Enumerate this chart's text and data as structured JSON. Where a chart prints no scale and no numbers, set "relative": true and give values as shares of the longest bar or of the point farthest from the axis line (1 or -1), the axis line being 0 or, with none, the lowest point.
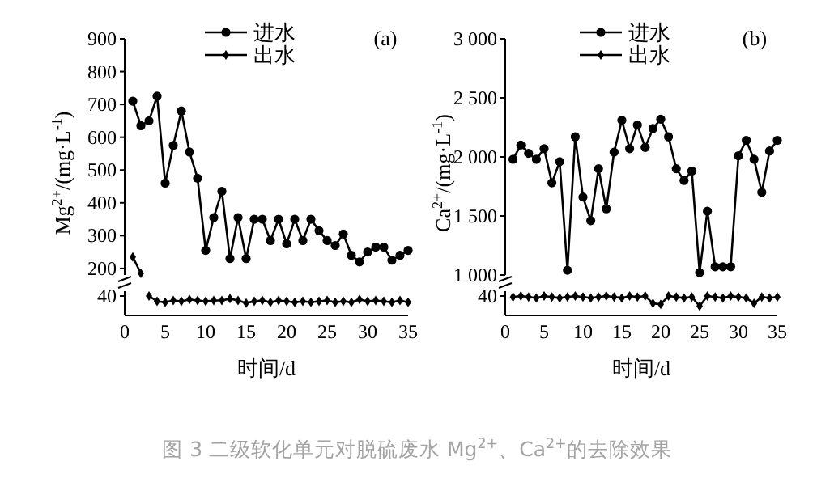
{
  "chart_data": [
    {
      "type": "line",
      "ylabel": "Mg$^{2+}$/(mg·L$^{-1}$)",
      "xlim": [
        0,
        35
      ],
      "ylim": [
        180,
        900
      ],
      "yticks": [
        200,
        300,
        400,
        500,
        600,
        700,
        800,
        900
      ],
      "tick_labels": "y",
      "legend": "top",
      "annotations": [
        "(a)",
        "图 3 二级软化单元对脱硫废水 Mg$^{2+}$、Ca$^{2+}$的去除效果"
      ],
      "series": [
        {
          "name": "进水",
          "color": "#000000",
          "marker": "circle",
          "x": [
            1,
            2,
            3,
            4,
            5,
            6,
            7,
            8,
            9,
            10,
            11,
            12,
            13,
            14,
            15,
            16,
            17,
            18,
            19,
            20,
            21,
            22,
            23,
            24,
            25,
            26,
            27,
            28,
            29,
            30,
            31,
            32,
            33,
            34,
            35
          ],
          "values": [
            710,
            635,
            650,
            725,
            460,
            575,
            680,
            555,
            475,
            255,
            355,
            435,
            230,
            355,
            230,
            350,
            350,
            285,
            350,
            275,
            350,
            285,
            350,
            315,
            285,
            270,
            305,
            240,
            220,
            250,
            265,
            265,
            225,
            240,
            255
          ]
        },
        {
          "name": "出水",
          "color": "#000000",
          "marker": "diamond",
          "x": [
            1,
            2
          ],
          "values": [
            235,
            185
          ]
        }
      ]
    },
    {
      "type": "line",
      "relative": true,
      "xlabel": "时间/d",
      "xlim": [
        0,
        35
      ],
      "xticks": [
        0,
        5,
        10,
        15,
        20,
        25,
        30,
        35
      ],
      "annotations": [
        "40"
      ],
      "series": [
        {
          "color": "#000000",
          "marker": "diamond",
          "x": [
            3,
            4,
            5,
            6,
            7,
            8,
            9,
            10,
            11,
            12,
            13,
            14,
            15,
            16,
            17,
            18,
            19,
            20,
            21,
            22,
            23,
            24,
            25,
            26,
            27,
            28,
            29,
            30,
            31,
            32,
            33,
            34,
            35
          ],
          "values": [
            1,
            0.73,
            0.68,
            0.77,
            0.73,
            0.82,
            0.77,
            0.73,
            0.77,
            0.77,
            0.86,
            0.77,
            0.64,
            0.73,
            0.77,
            0.68,
            0.77,
            0.73,
            0.68,
            0.73,
            0.68,
            0.73,
            0.77,
            0.68,
            0.73,
            0.68,
            0.82,
            0.73,
            0.77,
            0.73,
            0.68,
            0.77,
            0.68
          ]
        }
      ]
    },
    {
      "type": "line",
      "ylabel": "Ca$^{2+}$/(mg·L$^{-1}$)",
      "xlim": [
        0,
        35
      ],
      "ylim": [
        1000,
        3000
      ],
      "yticks": [
        {
          "value": 1000,
          "label": "1 000"
        },
        {
          "value": 1500,
          "label": "1 500"
        },
        {
          "value": 2000,
          "label": "2 000"
        },
        {
          "value": 2500,
          "label": "2 500"
        },
        {
          "value": 3000,
          "label": "3 000"
        }
      ],
      "tick_labels": "y",
      "legend": "top",
      "annotations": [
        "(b)"
      ],
      "series": [
        {
          "name": "进水",
          "color": "#000000",
          "marker": "circle",
          "x": [
            1,
            2,
            3,
            4,
            5,
            6,
            7,
            8,
            9,
            10,
            11,
            12,
            13,
            14,
            15,
            16,
            17,
            18,
            19,
            20,
            21,
            22,
            23,
            24,
            25,
            26,
            27,
            28,
            29,
            30,
            31,
            32,
            33,
            34,
            35
          ],
          "values": [
            1980,
            2100,
            2030,
            1980,
            2070,
            1780,
            1960,
            1040,
            2170,
            1660,
            1460,
            1900,
            1560,
            2040,
            2310,
            2070,
            2270,
            2080,
            2240,
            2320,
            2170,
            1900,
            1800,
            1880,
            1020,
            1540,
            1070,
            1070,
            1070,
            2010,
            2140,
            1980,
            1700,
            2050,
            2140
          ]
        },
        {
          "name": "出水",
          "color": "#000000",
          "marker": "diamond"
        }
      ]
    },
    {
      "type": "line",
      "relative": true,
      "xlabel": "时间/d",
      "xlim": [
        0,
        35
      ],
      "xticks": [
        0,
        5,
        10,
        15,
        20,
        25,
        30,
        35
      ],
      "annotations": [
        "40"
      ],
      "series": [
        {
          "color": "#000000",
          "marker": "diamond",
          "x": [
            1,
            2,
            3,
            4,
            5,
            6,
            7,
            8,
            9,
            10,
            11,
            12,
            13,
            14,
            15,
            16,
            17,
            18,
            19,
            20,
            21,
            22,
            23,
            24,
            25,
            26,
            27,
            28,
            29,
            30,
            31,
            32,
            33,
            34,
            35
          ],
          "values": [
            0.95,
            1,
            0.95,
            0.9,
            1,
            0.95,
            0.9,
            0.95,
            1,
            0.95,
            0.9,
            0.95,
            1,
            0.95,
            0.9,
            1,
            0.95,
            1,
            0.62,
            0.57,
            1,
            0.95,
            0.9,
            0.95,
            0.48,
            1,
            0.95,
            0.9,
            1,
            0.95,
            0.9,
            0.62,
            0.95,
            0.9,
            0.95
          ]
        }
      ]
    }
  ]
}
